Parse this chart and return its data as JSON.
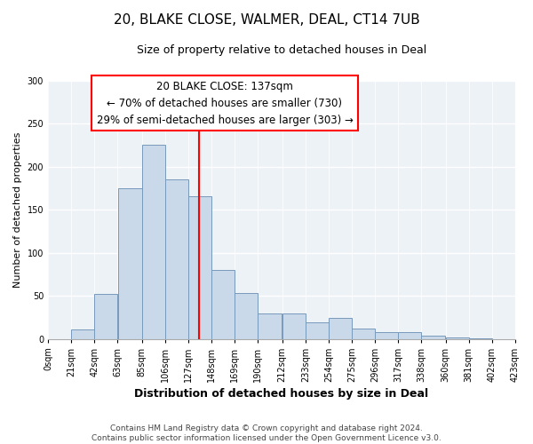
{
  "title": "20, BLAKE CLOSE, WALMER, DEAL, CT14 7UB",
  "subtitle": "Size of property relative to detached houses in Deal",
  "xlabel": "Distribution of detached houses by size in Deal",
  "ylabel": "Number of detached properties",
  "bar_left_edges": [
    0,
    21,
    42,
    63,
    85,
    106,
    127,
    148,
    169,
    190,
    212,
    233,
    254,
    275,
    296,
    317,
    338,
    360,
    381,
    402
  ],
  "bar_widths": [
    21,
    21,
    21,
    22,
    21,
    21,
    21,
    21,
    21,
    22,
    21,
    21,
    21,
    21,
    21,
    21,
    22,
    21,
    21,
    21
  ],
  "bar_heights": [
    0,
    11,
    52,
    175,
    225,
    185,
    165,
    80,
    53,
    29,
    29,
    19,
    24,
    12,
    8,
    8,
    4,
    2,
    1,
    0
  ],
  "bar_color": "#c9d9e9",
  "bar_edgecolor": "#7799bb",
  "xlim_left": 0,
  "xlim_right": 423,
  "ylim_bottom": 0,
  "ylim_top": 300,
  "yticks": [
    0,
    50,
    100,
    150,
    200,
    250,
    300
  ],
  "xtick_labels": [
    "0sqm",
    "21sqm",
    "42sqm",
    "63sqm",
    "85sqm",
    "106sqm",
    "127sqm",
    "148sqm",
    "169sqm",
    "190sqm",
    "212sqm",
    "233sqm",
    "254sqm",
    "275sqm",
    "296sqm",
    "317sqm",
    "338sqm",
    "360sqm",
    "381sqm",
    "402sqm",
    "423sqm"
  ],
  "xtick_positions": [
    0,
    21,
    42,
    63,
    85,
    106,
    127,
    148,
    169,
    190,
    212,
    233,
    254,
    275,
    296,
    317,
    338,
    360,
    381,
    402,
    423
  ],
  "vline_x": 137,
  "vline_color": "red",
  "ann_line1": "20 BLAKE CLOSE: 137sqm",
  "ann_line2": "← 70% of detached houses are smaller (730)",
  "ann_line3": "29% of semi-detached houses are larger (303) →",
  "footer_line1": "Contains HM Land Registry data © Crown copyright and database right 2024.",
  "footer_line2": "Contains public sector information licensed under the Open Government Licence v3.0.",
  "background_color": "#edf2f7",
  "grid_color": "white",
  "title_fontsize": 11,
  "subtitle_fontsize": 9,
  "xlabel_fontsize": 9,
  "ylabel_fontsize": 8,
  "tick_fontsize": 7,
  "annotation_fontsize": 8.5,
  "footer_fontsize": 6.5
}
